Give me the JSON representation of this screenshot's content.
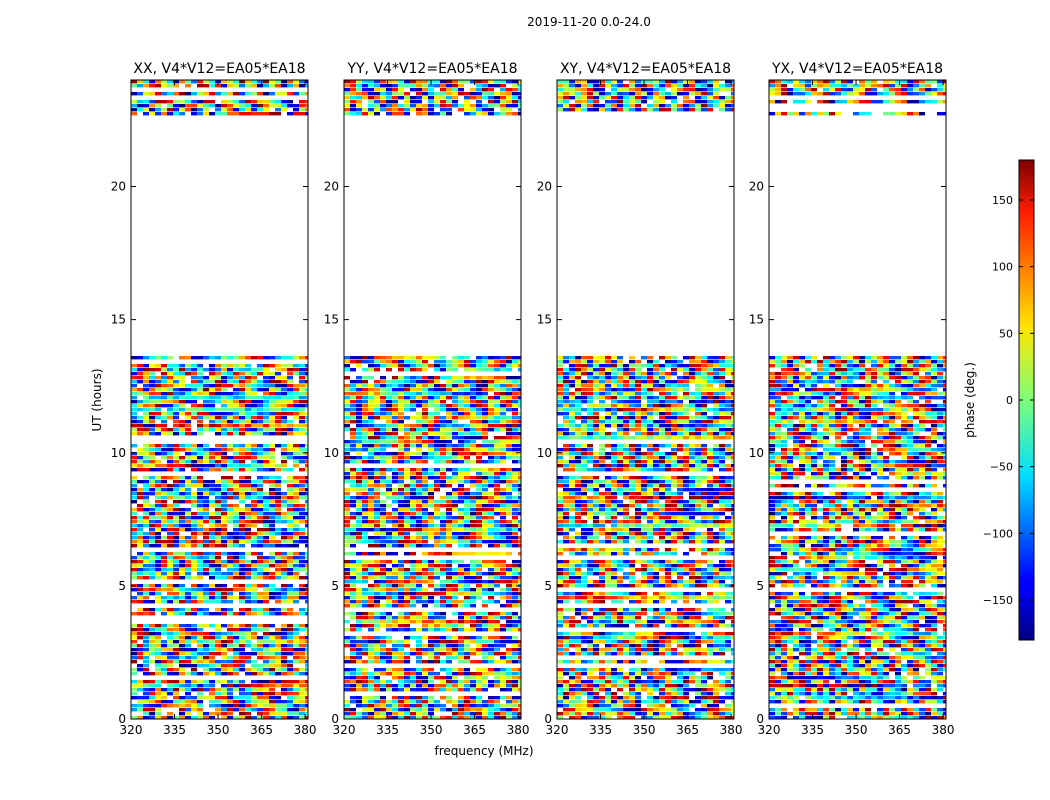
{
  "figure": {
    "suptitle": "2019-11-20 0.0-24.0"
  },
  "chart_data": {
    "type": "heatmap",
    "xlabel": "frequency (MHz)",
    "ylabel": "UT (hours)",
    "xlim": [
      320,
      381
    ],
    "ylim": [
      0,
      24
    ],
    "x_ticks": [
      320,
      335,
      350,
      365,
      380
    ],
    "y_ticks": [
      0,
      5,
      10,
      15,
      20
    ],
    "panels": [
      {
        "title": "XX, V4*V12=EA05*EA18"
      },
      {
        "title": "YY, V4*V12=EA05*EA18"
      },
      {
        "title": "XY, V4*V12=EA05*EA18"
      },
      {
        "title": "YX, V4*V12=EA05*EA18"
      }
    ],
    "data_gap_hours": [
      13.7,
      22.7
    ],
    "colorbar": {
      "label": "phase (deg.)",
      "range": [
        -180,
        180
      ],
      "ticks": [
        -150,
        -100,
        -50,
        0,
        50,
        100,
        150
      ],
      "tick_labels": [
        "−150",
        "−100",
        "−50",
        "0",
        "50",
        "100",
        "150"
      ],
      "colormap": "jet"
    }
  }
}
